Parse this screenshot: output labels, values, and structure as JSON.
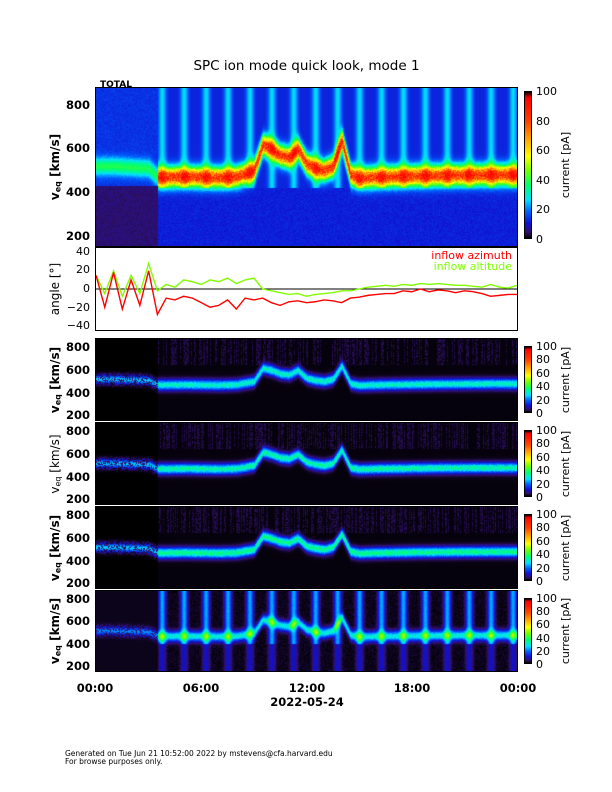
{
  "title": "SPC ion mode quick look, mode 1",
  "footer": {
    "line1": "Generated on Tue Jun 21 10:52:00 2022 by mstevens@cfa.harvard.edu",
    "line2": "For browse purposes only."
  },
  "colors": {
    "azimuth": "#ff0000",
    "altitude": "#80ff00"
  },
  "chart_data": [
    {
      "type": "heatmap",
      "panel_label": "TOTAL",
      "ylabel": "v_eq [km/s]",
      "ylim": [
        150,
        880
      ],
      "yticks": [
        200,
        400,
        600,
        800
      ],
      "colorbar": {
        "label": "current [pA]",
        "range": [
          0,
          100
        ],
        "ticks": [
          0,
          20,
          40,
          60,
          80,
          100
        ]
      },
      "background": "blue-striped",
      "beam_peak_current_pA": 75
    },
    {
      "type": "line",
      "ylabel": "angle [°]",
      "ylim": [
        -45,
        45
      ],
      "yticks": [
        -40,
        -20,
        0,
        20,
        40
      ],
      "x": [
        0,
        0.5,
        1,
        1.5,
        2,
        2.5,
        3,
        3.5,
        4,
        4.5,
        5,
        5.5,
        6,
        6.5,
        7,
        7.5,
        8,
        8.5,
        9,
        9.5,
        10,
        10.5,
        11,
        11.5,
        12,
        12.5,
        13,
        13.5,
        14,
        14.5,
        15,
        15.5,
        16,
        16.5,
        17,
        17.5,
        18,
        18.5,
        19,
        19.5,
        20,
        20.5,
        21,
        21.5,
        22,
        22.5,
        23,
        23.5,
        24
      ],
      "series": [
        {
          "name": "inflow azimuth",
          "values": [
            15,
            -20,
            18,
            -22,
            10,
            -18,
            20,
            -28,
            -10,
            -12,
            -8,
            -10,
            -15,
            -20,
            -18,
            -12,
            -22,
            -10,
            -12,
            -10,
            -15,
            -18,
            -14,
            -13,
            -15,
            -14,
            -12,
            -13,
            -15,
            -10,
            -9,
            -7,
            -6,
            -5,
            -5,
            -2,
            -3,
            0,
            -3,
            -1,
            -2,
            -4,
            -2,
            -3,
            -5,
            -8,
            -7,
            -6,
            -6
          ]
        },
        {
          "name": "inflow altitude",
          "values": [
            15,
            -5,
            20,
            -8,
            15,
            -5,
            28,
            -2,
            5,
            2,
            10,
            8,
            5,
            10,
            8,
            12,
            6,
            10,
            12,
            0,
            -2,
            -4,
            -6,
            -5,
            -8,
            -6,
            -5,
            -4,
            -2,
            -2,
            0,
            2,
            3,
            4,
            3,
            5,
            4,
            6,
            5,
            6,
            5,
            4,
            4,
            3,
            2,
            5,
            2,
            1,
            4
          ]
        }
      ],
      "legend": "top-right"
    },
    {
      "type": "heatmap",
      "ylabel": "v_eq [km/s]",
      "ylim": [
        150,
        880
      ],
      "yticks": [
        200,
        400,
        600,
        800
      ],
      "colorbar": {
        "label": "current [pA]",
        "range": [
          0,
          100
        ],
        "ticks": [
          0,
          20,
          40,
          60,
          80,
          100
        ]
      },
      "background": "dark",
      "beam_peak_current_pA": 30
    },
    {
      "type": "heatmap",
      "ylabel": "v_eq [km/s]",
      "ylim": [
        150,
        880
      ],
      "yticks": [
        200,
        400,
        600,
        800
      ],
      "colorbar": {
        "label": "current [pA]",
        "range": [
          0,
          100
        ],
        "ticks": [
          0,
          20,
          40,
          60,
          80,
          100
        ]
      },
      "background": "dark",
      "beam_peak_current_pA": 32
    },
    {
      "type": "heatmap",
      "ylabel": "v_eq [km/s]",
      "ylim": [
        150,
        880
      ],
      "yticks": [
        200,
        400,
        600,
        800
      ],
      "colorbar": {
        "label": "current [pA]",
        "range": [
          0,
          100
        ],
        "ticks": [
          0,
          20,
          40,
          60,
          80,
          100
        ]
      },
      "background": "dark",
      "beam_peak_current_pA": 34
    },
    {
      "type": "heatmap",
      "ylabel": "v_eq [km/s]",
      "ylim": [
        150,
        880
      ],
      "yticks": [
        200,
        400,
        600,
        800
      ],
      "colorbar": {
        "label": "current [pA]",
        "range": [
          0,
          100
        ],
        "ticks": [
          0,
          20,
          40,
          60,
          80,
          100
        ]
      },
      "background": "striped",
      "beam_peak_current_pA": 28
    }
  ],
  "beam_velocity": {
    "hours": [
      0,
      1,
      2,
      3,
      3.5,
      4,
      5,
      6,
      7,
      8,
      9,
      9.5,
      10,
      10.5,
      11,
      11.5,
      12,
      12.5,
      13,
      13.5,
      14,
      14.5,
      15,
      16,
      18,
      20,
      22,
      24
    ],
    "km_s": [
      520,
      520,
      515,
      510,
      470,
      470,
      472,
      470,
      468,
      472,
      500,
      620,
      600,
      570,
      560,
      600,
      530,
      510,
      500,
      520,
      640,
      480,
      465,
      470,
      475,
      478,
      480,
      480
    ]
  },
  "xaxis": {
    "ticks": [
      "00:00",
      "06:00",
      "12:00",
      "18:00",
      "00:00"
    ],
    "label": "2022-05-24",
    "range_hours": [
      0,
      24
    ]
  }
}
